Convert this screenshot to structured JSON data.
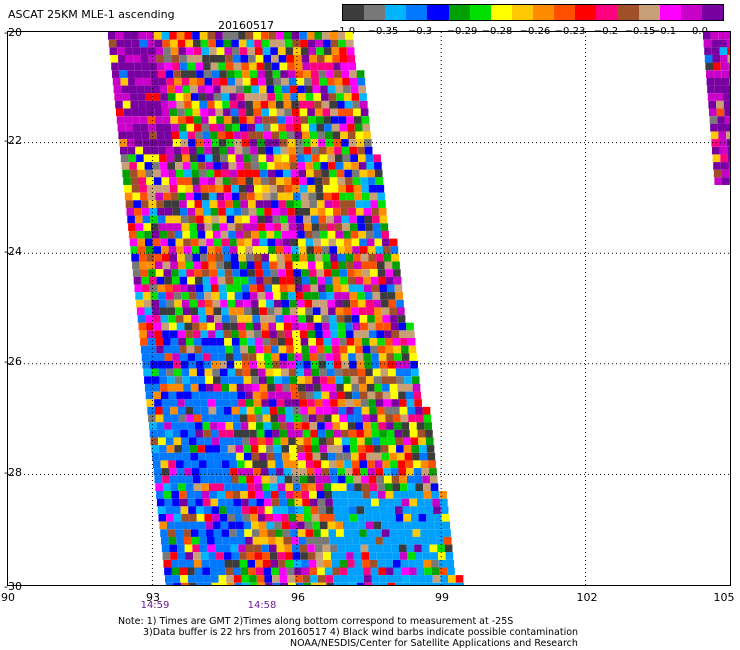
{
  "title": "ASCAT 25KM MLE-1 ascending",
  "date": "20160517",
  "colorbar": {
    "colors": [
      "#3c3c3c",
      "#787878",
      "#00b4ff",
      "#0078ff",
      "#0000ff",
      "#00a000",
      "#00e000",
      "#ffff00",
      "#ffc800",
      "#ff8c00",
      "#ff5000",
      "#ff0000",
      "#ff0080",
      "#a05028",
      "#c8a078",
      "#ff00ff",
      "#c800c8",
      "#7800a0"
    ],
    "labels": [
      "−1.0",
      "−0.35",
      "−0.3",
      "−0.29",
      "−0.28",
      "−0.26",
      "−0.23",
      "−0.2",
      "−0.15",
      "−0.1",
      "0.0"
    ]
  },
  "axes": {
    "lon_ticks": [
      "90",
      "93",
      "96",
      "99",
      "102",
      "105"
    ],
    "lat_ticks": [
      "-20",
      "-22",
      "-24",
      "-26",
      "-28",
      "-30"
    ]
  },
  "pass_times": [
    {
      "lon": "93",
      "time": "14:59"
    },
    {
      "lon": "96",
      "time": "14:58"
    }
  ],
  "note": {
    "line1": "Note: 1) Times are GMT 2)Times along bottom correspond to measurement at -25S",
    "line2": "3)Data buffer is 22 hrs from 20160517 4) Black wind barbs indicate possible contamination",
    "line3": "NOAA/NESDIS/Center for Satellite Applications and Research"
  }
}
